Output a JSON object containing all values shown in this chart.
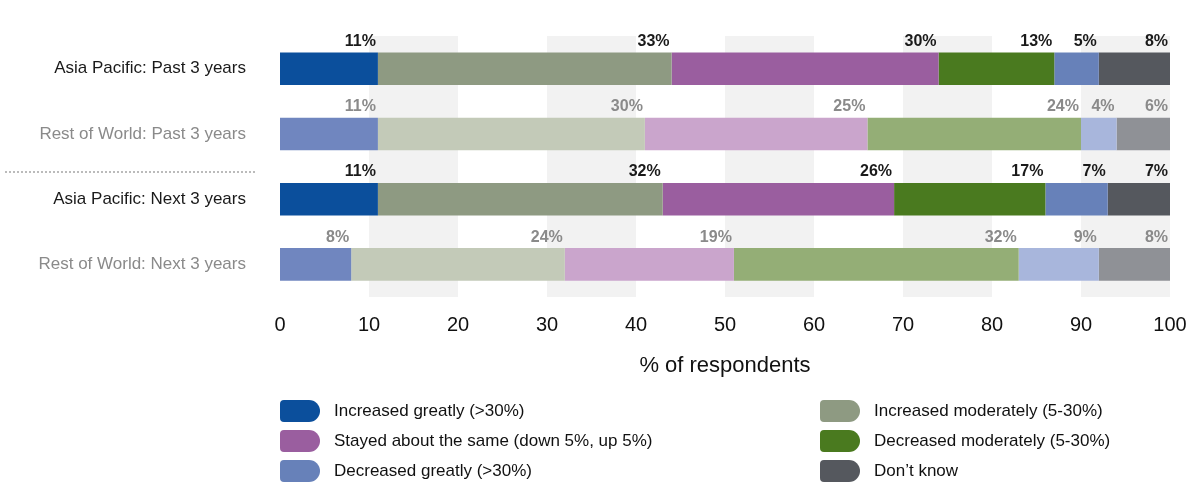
{
  "chart_data": {
    "type": "bar",
    "orientation": "horizontal",
    "stacked": true,
    "categories": [
      "Asia Pacific: Past 3 years",
      "Rest of World: Past 3 years",
      "Asia Pacific: Next 3 years",
      "Rest of World: Next 3 years"
    ],
    "series": [
      {
        "name": "Increased greatly (>30%)",
        "color": "#0b4f9c",
        "colors": [
          "#0b4f9c",
          "#7086bf",
          "#0b4f9c",
          "#7086bf"
        ],
        "values": [
          11,
          11,
          11,
          8
        ],
        "value_labels": [
          "11%",
          "11%",
          "11%",
          "8%"
        ]
      },
      {
        "name": "Increased moderately (5-30%)",
        "color": "#8e9a82",
        "colors": [
          "#8e9a82",
          "#c3cab8",
          "#8e9a82",
          "#c3cab8"
        ],
        "values": [
          33,
          30,
          32,
          24
        ],
        "value_labels": [
          "33%",
          "30%",
          "32%",
          "24%"
        ]
      },
      {
        "name": "Stayed about the same (down 5%, up 5%)",
        "color": "#9a5e9f",
        "colors": [
          "#9a5e9f",
          "#caa5cc",
          "#9a5e9f",
          "#caa5cc"
        ],
        "values": [
          30,
          25,
          26,
          19
        ],
        "value_labels": [
          "30%",
          "25%",
          "26%",
          "19%"
        ]
      },
      {
        "name": "Decreased moderately (5-30%)",
        "color": "#4a7a1f",
        "colors": [
          "#4a7a1f",
          "#94ae76",
          "#4a7a1f",
          "#94ae76"
        ],
        "values": [
          13,
          24,
          17,
          32
        ],
        "value_labels": [
          "13%",
          "24%",
          "17%",
          "32%"
        ]
      },
      {
        "name": "Decreased greatly (>30%)",
        "color": "#6781b9",
        "colors": [
          "#6781b9",
          "#a8b6dc",
          "#6781b9",
          "#a8b6dc"
        ],
        "values": [
          5,
          4,
          7,
          9
        ],
        "value_labels": [
          "5%",
          "4%",
          "7%",
          "9%"
        ]
      },
      {
        "name": "Don’t know",
        "color": "#55585e",
        "colors": [
          "#55585e",
          "#8f9196",
          "#55585e",
          "#8f9196"
        ],
        "values": [
          8,
          6,
          7,
          8
        ],
        "value_labels": [
          "8%",
          "6%",
          "7%",
          "8%"
        ]
      }
    ],
    "xlabel": "% of respondents",
    "xlim": [
      0,
      100
    ],
    "xticks": [
      0,
      10,
      20,
      30,
      40,
      50,
      60,
      70,
      80,
      90,
      100
    ],
    "legend": "bottom"
  }
}
